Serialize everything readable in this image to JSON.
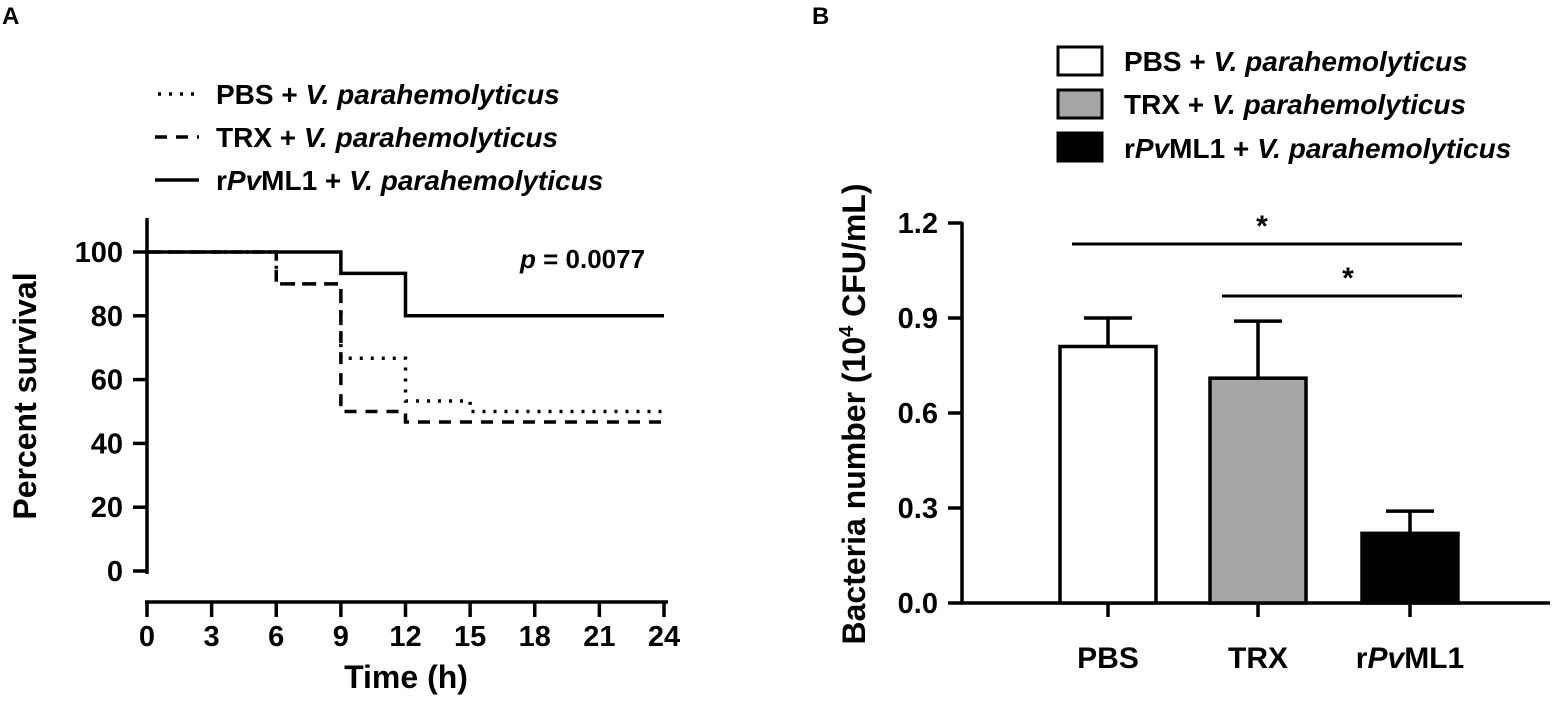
{
  "chart_data": [
    {
      "panel_label": "A",
      "type": "line",
      "line_shape": "step",
      "xlabel": "Time (h)",
      "ylabel": "Percent survival",
      "xlim": [
        0,
        24
      ],
      "ylim": [
        0,
        100
      ],
      "x_ticks": [
        "0",
        "3",
        "6",
        "9",
        "12",
        "15",
        "18",
        "21",
        "24"
      ],
      "y_ticks": [
        "0",
        "20",
        "40",
        "60",
        "80",
        "100"
      ],
      "annotation": {
        "prefix": "p",
        "text": " = 0.0077"
      },
      "legend_position": "top",
      "series": [
        {
          "key": "pbs",
          "name": "PBS + V. parahemolyticus",
          "name_parts": {
            "pre": "PBS + ",
            "italic": "V. parahemolyticus",
            "post": ""
          },
          "style": "dotted",
          "x": [
            0,
            6,
            9,
            12,
            15,
            24
          ],
          "y": [
            100,
            90,
            66.7,
            53.3,
            50,
            50
          ]
        },
        {
          "key": "trx",
          "name": "TRX + V. parahemolyticus",
          "name_parts": {
            "pre": "TRX + ",
            "italic": "V. parahemolyticus",
            "post": ""
          },
          "style": "dashed",
          "x": [
            0,
            6,
            9,
            12,
            24
          ],
          "y": [
            100,
            90,
            50,
            46.7,
            46.7
          ]
        },
        {
          "key": "rpvml1",
          "name": "rPvML1 + V. parahemolyticus",
          "name_parts": {
            "pre": "r",
            "italic_prefix": "Pv",
            "mid": "ML1 + ",
            "italic": "V. parahemolyticus"
          },
          "style": "solid",
          "x": [
            0,
            9,
            12,
            24
          ],
          "y": [
            100,
            93.3,
            80,
            80
          ]
        }
      ]
    },
    {
      "panel_label": "B",
      "type": "bar",
      "ylabel_parts": {
        "pre": "Bacteria number (10",
        "sup": "4",
        "post": " CFU/mL)"
      },
      "ylim": [
        0,
        1.2
      ],
      "y_ticks": [
        "0.0",
        "0.3",
        "0.6",
        "0.9",
        "1.2"
      ],
      "categories": [
        {
          "label": "PBS"
        },
        {
          "label": "TRX"
        },
        {
          "label_parts": {
            "pre": "r",
            "italic": "Pv",
            "post": "ML1"
          }
        }
      ],
      "values": [
        0.81,
        0.71,
        0.22
      ],
      "errors": [
        0.09,
        0.18,
        0.07
      ],
      "colors": [
        "#ffffff",
        "#a6a6a6",
        "#000000"
      ],
      "legend_position": "top",
      "legend": [
        {
          "pre": "PBS + ",
          "italic": "V. parahemolyticus",
          "color": "#ffffff"
        },
        {
          "pre": "TRX + ",
          "italic": "V. parahemolyticus",
          "color": "#a6a6a6"
        },
        {
          "pre": "r",
          "italic_prefix": "Pv",
          "mid": "ML1 + ",
          "italic": "V. parahemolyticus",
          "color": "#000000"
        }
      ],
      "significance": [
        {
          "from": 0,
          "to": 2,
          "label": "*"
        },
        {
          "from": 1,
          "to": 2,
          "label": "*"
        }
      ]
    }
  ]
}
